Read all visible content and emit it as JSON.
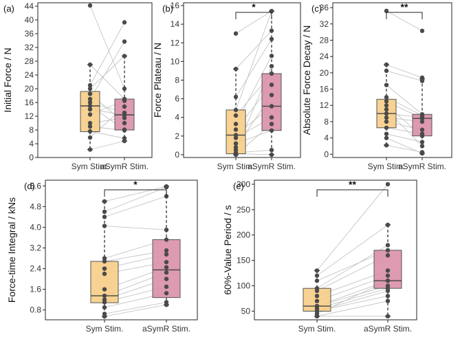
{
  "figure": {
    "colors": {
      "sym_fill": "#f6cd86",
      "asym_fill": "#d98fa8",
      "pair_line": "#c4c4c4",
      "point": "#4a4a4a"
    },
    "categories": [
      "Sym Stim.",
      "aSymR Stim."
    ]
  },
  "chart_data": [
    {
      "id": "a",
      "type": "box",
      "panel_label": "(a)",
      "ylabel": "Initial Force / N",
      "categories": [
        "Sym Stim.",
        "aSymR Stim."
      ],
      "ylim": [
        0,
        45
      ],
      "yticks": [
        0,
        4,
        8,
        12,
        16,
        20,
        24,
        28,
        32,
        36,
        40,
        44
      ],
      "significance": null,
      "boxes": [
        {
          "q1": 7.5,
          "median": 15.0,
          "q3": 19.2,
          "whisker_low": 2.3,
          "whisker_high": 27.0
        },
        {
          "q1": 8.0,
          "median": 12.4,
          "q3": 17.0,
          "whisker_low": 4.8,
          "whisker_high": 29.5
        }
      ],
      "pairs": [
        [
          44.2,
          20.0
        ],
        [
          27.0,
          17.0
        ],
        [
          21.0,
          39.3
        ],
        [
          20.0,
          29.5
        ],
        [
          18.5,
          10.0
        ],
        [
          17.0,
          33.7
        ],
        [
          16.0,
          13.0
        ],
        [
          15.0,
          8.1
        ],
        [
          14.0,
          12.4
        ],
        [
          12.5,
          16.5
        ],
        [
          10.0,
          11.5
        ],
        [
          9.0,
          7.9
        ],
        [
          7.6,
          5.6
        ],
        [
          5.8,
          14.8
        ],
        [
          2.3,
          4.8
        ]
      ]
    },
    {
      "id": "b",
      "type": "box",
      "panel_label": "(b)",
      "ylabel": "Force Plateau / N",
      "categories": [
        "Sym Stim.",
        "aSymR Stim."
      ],
      "ylim": [
        -0.3,
        16.3
      ],
      "yticks": [
        0,
        2,
        4,
        6,
        8,
        10,
        12,
        14,
        16
      ],
      "significance": "*",
      "boxes": [
        {
          "q1": 0.1,
          "median": 2.1,
          "q3": 4.8,
          "whisker_low": 0.0,
          "whisker_high": 9.2
        },
        {
          "q1": 2.6,
          "median": 5.2,
          "q3": 8.7,
          "whisker_low": 0.0,
          "whisker_high": 15.4
        }
      ],
      "pairs": [
        [
          13.0,
          15.4
        ],
        [
          9.2,
          13.3
        ],
        [
          6.2,
          12.4
        ],
        [
          4.8,
          15.4
        ],
        [
          4.2,
          8.7
        ],
        [
          3.3,
          10.6
        ],
        [
          2.7,
          7.5
        ],
        [
          2.1,
          5.2
        ],
        [
          1.8,
          4.0
        ],
        [
          1.2,
          2.6
        ],
        [
          0.8,
          6.4
        ],
        [
          0.5,
          9.5
        ],
        [
          0.2,
          0.5
        ],
        [
          0.1,
          0.0
        ],
        [
          0.0,
          3.3
        ]
      ]
    },
    {
      "id": "c",
      "type": "box",
      "panel_label": "(c)",
      "ylabel": "Absolute Force Decay / N",
      "categories": [
        "Sym Stim.",
        "aSymR Stim."
      ],
      "ylim": [
        -0.8,
        37.2
      ],
      "yticks": [
        0,
        4,
        8,
        12,
        16,
        20,
        24,
        28,
        32,
        36
      ],
      "significance": "**",
      "boxes": [
        {
          "q1": 6.5,
          "median": 10.0,
          "q3": 13.5,
          "whisker_low": 2.2,
          "whisker_high": 22.0
        },
        {
          "q1": 4.5,
          "median": 8.8,
          "q3": 9.8,
          "whisker_low": 0.2,
          "whisker_high": 18.5
        }
      ],
      "pairs": [
        [
          35.2,
          30.3
        ],
        [
          22.0,
          18.8
        ],
        [
          20.5,
          18.0
        ],
        [
          17.0,
          9.8
        ],
        [
          14.0,
          9.5
        ],
        [
          13.0,
          8.8
        ],
        [
          12.0,
          4.5
        ],
        [
          11.0,
          2.0
        ],
        [
          10.0,
          9.0
        ],
        [
          9.0,
          8.0
        ],
        [
          8.0,
          6.0
        ],
        [
          6.5,
          5.0
        ],
        [
          5.0,
          3.0
        ],
        [
          4.0,
          0.2
        ],
        [
          2.2,
          0.5
        ]
      ]
    },
    {
      "id": "d",
      "type": "box",
      "panel_label": "(d)",
      "ylabel": "Force-time Integral / kNs",
      "categories": [
        "Sym Stim.",
        "aSymR Stim."
      ],
      "ylim": [
        0.42,
        5.82
      ],
      "yticks": [
        0.8,
        1.6,
        2.4,
        3.2,
        4.0,
        4.8,
        5.6
      ],
      "ytick_labels": [
        "0.8",
        "1.6",
        "2.4",
        "3.2",
        "4.0",
        "4.8",
        "5.6"
      ],
      "significance": "*",
      "boxes": [
        {
          "q1": 1.08,
          "median": 1.35,
          "q3": 2.68,
          "whisker_low": 0.55,
          "whisker_high": 5.0
        },
        {
          "q1": 1.28,
          "median": 2.35,
          "q3": 3.52,
          "whisker_low": 1.0,
          "whisker_high": 5.58
        }
      ],
      "pairs": [
        [
          5.0,
          5.58
        ],
        [
          4.6,
          5.55
        ],
        [
          4.4,
          5.2
        ],
        [
          4.05,
          3.9
        ],
        [
          2.8,
          3.52
        ],
        [
          2.68,
          3.1
        ],
        [
          2.4,
          2.95
        ],
        [
          2.2,
          2.65
        ],
        [
          1.6,
          2.45
        ],
        [
          1.35,
          2.25
        ],
        [
          1.2,
          2.0
        ],
        [
          1.1,
          1.7
        ],
        [
          0.9,
          1.45
        ],
        [
          0.65,
          1.1
        ],
        [
          0.55,
          1.0
        ]
      ]
    },
    {
      "id": "e",
      "type": "box",
      "panel_label": "(e)",
      "ylabel": "60%-Value Period / s",
      "categories": [
        "Sym Stim.",
        "aSymR Stim."
      ],
      "ylim": [
        33,
        308
      ],
      "yticks": [
        50,
        100,
        150,
        200,
        250,
        300
      ],
      "significance": "**",
      "boxes": [
        {
          "q1": 50,
          "median": 60,
          "q3": 95,
          "whisker_low": 40,
          "whisker_high": 130
        },
        {
          "q1": 95,
          "median": 110,
          "q3": 170,
          "whisker_low": 40,
          "whisker_high": 220
        }
      ],
      "pairs": [
        [
          130,
          300
        ],
        [
          120,
          220
        ],
        [
          110,
          170
        ],
        [
          95,
          180
        ],
        [
          90,
          160
        ],
        [
          80,
          130
        ],
        [
          70,
          120
        ],
        [
          60,
          110
        ],
        [
          60,
          100
        ],
        [
          55,
          95
        ],
        [
          50,
          90
        ],
        [
          50,
          80
        ],
        [
          45,
          110
        ],
        [
          40,
          40
        ],
        [
          40,
          70
        ]
      ]
    }
  ]
}
